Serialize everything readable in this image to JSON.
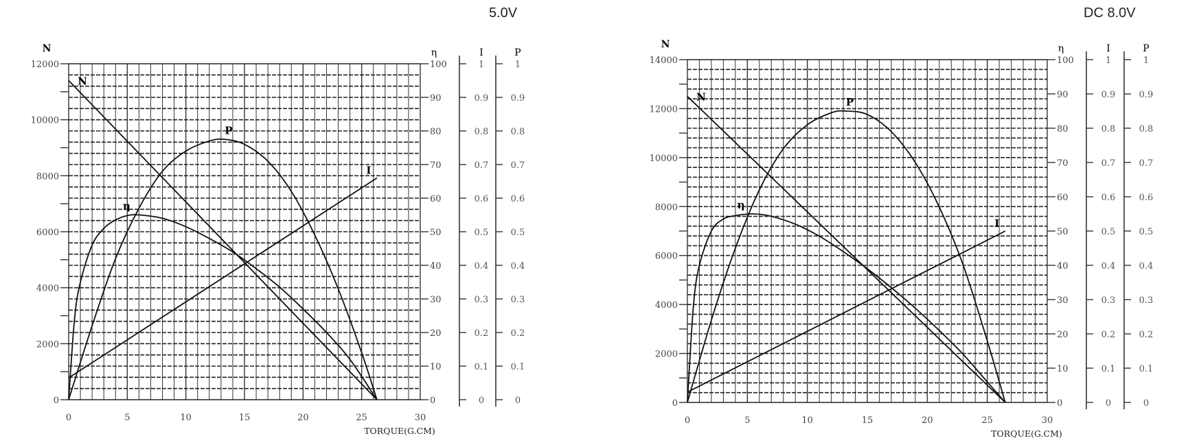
{
  "charts": [
    {
      "title": "5.0V",
      "xlabel": "TORQUE(G.CM)",
      "axes": {
        "N": {
          "label": "N",
          "min": 0,
          "max": 12000,
          "ticks": [
            0,
            2000,
            4000,
            6000,
            8000,
            10000,
            12000
          ]
        },
        "eta": {
          "label": "η",
          "min": 0,
          "max": 100,
          "ticks": [
            0,
            10,
            20,
            30,
            40,
            50,
            60,
            70,
            80,
            90,
            100
          ]
        },
        "I": {
          "label": "I",
          "min": 0,
          "max": 1,
          "ticks": [
            "0",
            "0.1",
            "0.2",
            "0.3",
            "0.4",
            "0.5",
            "0.6",
            "0.7",
            "0.8",
            "0.9",
            "1"
          ]
        },
        "P": {
          "label": "P",
          "min": 0,
          "max": 1,
          "ticks": [
            "0",
            "0.1",
            "0.2",
            "0.3",
            "0.4",
            "0.5",
            "0.6",
            "0.7",
            "0.8",
            "0.9",
            "1"
          ]
        },
        "x": {
          "min": 0,
          "max": 30,
          "ticks": [
            0,
            5,
            10,
            15,
            20,
            25,
            30
          ]
        }
      }
    },
    {
      "title": "DC 8.0V",
      "xlabel": "TORQUE(G.CM)",
      "axes": {
        "N": {
          "label": "N",
          "min": 0,
          "max": 14000,
          "ticks": [
            0,
            2000,
            4000,
            6000,
            8000,
            10000,
            12000,
            14000
          ]
        },
        "eta": {
          "label": "η",
          "min": 0,
          "max": 100,
          "ticks": [
            0,
            10,
            20,
            30,
            40,
            50,
            60,
            70,
            80,
            90,
            100
          ]
        },
        "I": {
          "label": "I",
          "min": 0,
          "max": 1,
          "ticks": [
            "0",
            "0.1",
            "0.2",
            "0.3",
            "0.4",
            "0.5",
            "0.6",
            "0.7",
            "0.8",
            "0.9",
            "1"
          ]
        },
        "P": {
          "label": "P",
          "min": 0,
          "max": 1,
          "ticks": [
            "0",
            "0.1",
            "0.2",
            "0.3",
            "0.4",
            "0.5",
            "0.6",
            "0.7",
            "0.8",
            "0.9",
            "1"
          ]
        },
        "x": {
          "min": 0,
          "max": 30,
          "ticks": [
            0,
            5,
            10,
            15,
            20,
            25,
            30
          ]
        }
      }
    }
  ],
  "chart_data": [
    {
      "type": "line",
      "title": "5.0V",
      "xlabel": "TORQUE(G.CM)",
      "ylabel": "N",
      "xlim": [
        0,
        30
      ],
      "ylim": [
        0,
        12000
      ],
      "secondary_axes": {
        "η": [
          0,
          100
        ],
        "I": [
          0,
          1
        ],
        "P": [
          0,
          1
        ]
      },
      "grid": true,
      "series": [
        {
          "name": "N",
          "axis": "N",
          "x": [
            0,
            26.3
          ],
          "values": [
            11400,
            0
          ]
        },
        {
          "name": "I",
          "axis": "I",
          "x": [
            0,
            26.3
          ],
          "values": [
            0.065,
            0.66
          ]
        },
        {
          "name": "P",
          "axis": "P",
          "x": [
            0,
            2,
            4,
            6,
            8,
            10,
            12,
            13.3,
            15,
            17,
            19,
            21,
            23,
            25,
            26.3
          ],
          "values": [
            0,
            0.22,
            0.42,
            0.57,
            0.68,
            0.74,
            0.77,
            0.775,
            0.76,
            0.71,
            0.62,
            0.49,
            0.33,
            0.14,
            0
          ]
        },
        {
          "name": "η",
          "axis": "eta",
          "x": [
            0,
            0.5,
            1,
            2,
            3,
            4,
            5,
            6,
            8,
            10,
            12,
            14,
            16,
            18,
            20,
            22,
            24,
            26.3
          ],
          "values": [
            0,
            24,
            35,
            46,
            51,
            53.5,
            54.8,
            55,
            54,
            51.5,
            48,
            44,
            39,
            33.5,
            27,
            20,
            12,
            0
          ]
        }
      ]
    },
    {
      "type": "line",
      "title": "DC 8.0V",
      "xlabel": "TORQUE(G.CM)",
      "ylabel": "N",
      "xlim": [
        0,
        30
      ],
      "ylim": [
        0,
        14000
      ],
      "secondary_axes": {
        "η": [
          0,
          100
        ],
        "I": [
          0,
          1
        ],
        "P": [
          0,
          1
        ]
      },
      "grid": true,
      "series": [
        {
          "name": "N",
          "axis": "N",
          "x": [
            0,
            26.5
          ],
          "values": [
            12500,
            0
          ]
        },
        {
          "name": "I",
          "axis": "I",
          "x": [
            0,
            26.5
          ],
          "values": [
            0.03,
            0.5
          ]
        },
        {
          "name": "P",
          "axis": "P",
          "x": [
            0,
            2,
            4,
            6,
            8,
            10,
            12,
            13.2,
            15,
            17,
            19,
            21,
            23,
            25,
            26.5
          ],
          "values": [
            0,
            0.24,
            0.45,
            0.62,
            0.74,
            0.81,
            0.845,
            0.85,
            0.84,
            0.79,
            0.7,
            0.57,
            0.4,
            0.18,
            0
          ]
        },
        {
          "name": "η",
          "axis": "eta",
          "x": [
            0,
            0.5,
            1,
            2,
            3,
            4,
            5.5,
            7,
            9,
            11,
            13,
            15,
            17,
            19,
            21,
            23,
            25,
            26.5
          ],
          "values": [
            0,
            28,
            40,
            50,
            53.5,
            54.5,
            55,
            54.3,
            52,
            48.5,
            44,
            39,
            33.5,
            27.5,
            21,
            14,
            6,
            0
          ]
        }
      ]
    }
  ]
}
